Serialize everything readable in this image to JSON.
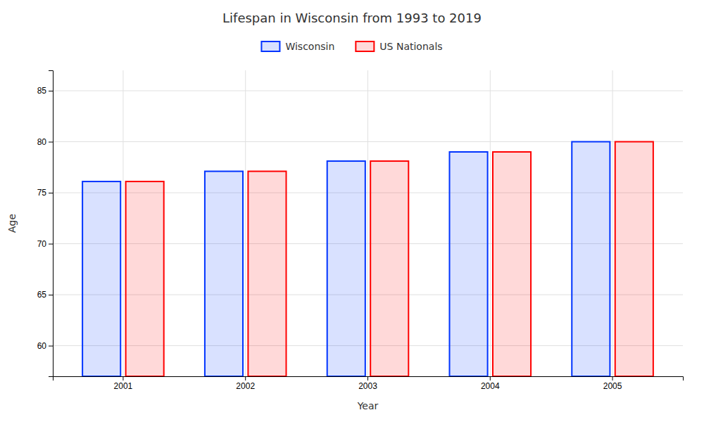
{
  "chart_data": {
    "type": "bar",
    "title": "Lifespan in Wisconsin from 1993 to 2019",
    "xlabel": "Year",
    "ylabel": "Age",
    "categories": [
      "2001",
      "2002",
      "2003",
      "2004",
      "2005"
    ],
    "series": [
      {
        "name": "Wisconsin",
        "color": "#0033ff",
        "values": [
          76.1,
          77.1,
          78.1,
          79.0,
          80.0
        ]
      },
      {
        "name": "US Nationals",
        "color": "#ff0000",
        "values": [
          76.1,
          77.1,
          78.1,
          79.0,
          80.0
        ]
      }
    ],
    "ylim": [
      57,
      87
    ],
    "yticks": [
      60,
      65,
      70,
      75,
      80,
      85
    ],
    "grid": true,
    "legend": "top"
  }
}
